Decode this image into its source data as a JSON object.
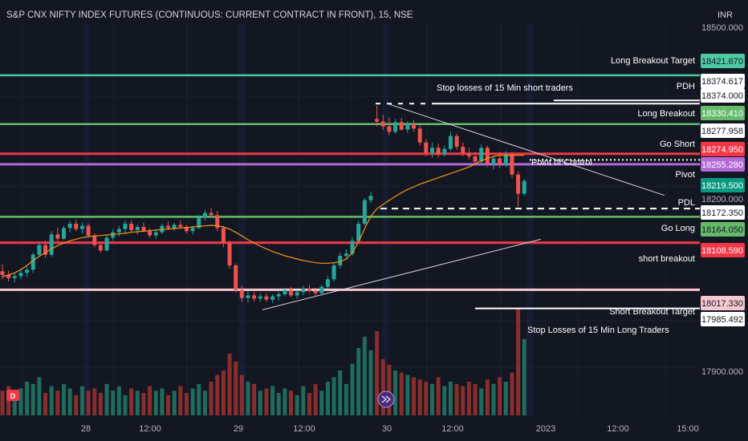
{
  "header": {
    "title": "S&P CNX NIFTY INDEX FUTURES (CONTINUOUS: CURRENT CONTRACT IN FRONT), 15, NSE",
    "currency": "INR"
  },
  "colors": {
    "background": "#131722",
    "up": "#26a69a",
    "down": "#ef5350",
    "vol_up": "#1f6b5e",
    "vol_down": "#8a2d2d",
    "vwap": "#f7931a",
    "teal_line": "#4ec9a4",
    "green_line": "#66bb6a",
    "red_line": "#f23645",
    "purple_line": "#b36ad8",
    "pink_line": "#f8c8d0",
    "white": "#ffffff"
  },
  "chart_data": {
    "type": "candlestick",
    "title": "S&P CNX NIFTY INDEX FUTURES (CONTINUOUS: CURRENT CONTRACT IN FRONT), 15, NSE",
    "interval": "15",
    "exchange": "NSE",
    "currency": "INR",
    "ylim": [
      17880,
      18510
    ],
    "y_ticks": [
      "18500.000",
      "18200.000",
      "17900.000"
    ],
    "x_ticks": [
      "28",
      "12:00",
      "29",
      "12:00",
      "30",
      "12:00",
      "2023",
      "12:00",
      "15:00"
    ],
    "grid": true,
    "candles": [
      [
        18055,
        18068,
        18040,
        18048
      ],
      [
        18048,
        18056,
        18036,
        18042
      ],
      [
        18042,
        18052,
        18034,
        18046
      ],
      [
        18046,
        18060,
        18040,
        18052
      ],
      [
        18052,
        18064,
        18044,
        18058
      ],
      [
        18058,
        18090,
        18052,
        18086
      ],
      [
        18086,
        18110,
        18082,
        18104
      ],
      [
        18104,
        18112,
        18080,
        18086
      ],
      [
        18086,
        18130,
        18082,
        18124
      ],
      [
        18124,
        18136,
        18110,
        18116
      ],
      [
        18116,
        18140,
        18114,
        18136
      ],
      [
        18136,
        18150,
        18128,
        18144
      ],
      [
        18144,
        18152,
        18130,
        18134
      ],
      [
        18134,
        18146,
        18126,
        18140
      ],
      [
        18140,
        18144,
        18118,
        18122
      ],
      [
        18122,
        18126,
        18100,
        18104
      ],
      [
        18104,
        18110,
        18090,
        18094
      ],
      [
        18094,
        18122,
        18092,
        18118
      ],
      [
        18118,
        18134,
        18112,
        18128
      ],
      [
        18128,
        18140,
        18120,
        18134
      ],
      [
        18134,
        18150,
        18126,
        18144
      ],
      [
        18144,
        18150,
        18128,
        18132
      ],
      [
        18132,
        18142,
        18124,
        18138
      ],
      [
        18138,
        18146,
        18128,
        18130
      ],
      [
        18130,
        18136,
        18118,
        18122
      ],
      [
        18122,
        18132,
        18116,
        18128
      ],
      [
        18128,
        18144,
        18124,
        18140
      ],
      [
        18140,
        18148,
        18132,
        18136
      ],
      [
        18136,
        18146,
        18130,
        18142
      ],
      [
        18142,
        18150,
        18134,
        18138
      ],
      [
        18138,
        18142,
        18126,
        18130
      ],
      [
        18130,
        18140,
        18124,
        18136
      ],
      [
        18136,
        18160,
        18134,
        18156
      ],
      [
        18156,
        18170,
        18150,
        18164
      ],
      [
        18164,
        18174,
        18156,
        18160
      ],
      [
        18160,
        18168,
        18130,
        18136
      ],
      [
        18136,
        18140,
        18100,
        18108
      ],
      [
        18108,
        18112,
        18060,
        18066
      ],
      [
        18066,
        18070,
        18015,
        18020
      ],
      [
        18020,
        18028,
        17998,
        18005
      ],
      [
        18005,
        18018,
        17996,
        18010
      ],
      [
        18010,
        18016,
        17998,
        18004
      ],
      [
        18004,
        18014,
        17998,
        18008
      ],
      [
        18008,
        18014,
        17998,
        18002
      ],
      [
        18002,
        18012,
        17996,
        18008
      ],
      [
        18008,
        18016,
        18000,
        18012
      ],
      [
        18012,
        18024,
        18008,
        18020
      ],
      [
        18020,
        18026,
        18006,
        18010
      ],
      [
        18010,
        18020,
        18004,
        18016
      ],
      [
        18016,
        18028,
        18010,
        18022
      ],
      [
        18022,
        18030,
        18014,
        18018
      ],
      [
        18018,
        18024,
        18008,
        18014
      ],
      [
        18014,
        18030,
        18010,
        18026
      ],
      [
        18026,
        18046,
        18022,
        18040
      ],
      [
        18040,
        18072,
        18036,
        18066
      ],
      [
        18066,
        18090,
        18060,
        18084
      ],
      [
        18084,
        18096,
        18076,
        18088
      ],
      [
        18088,
        18118,
        18084,
        18112
      ],
      [
        18112,
        18150,
        18108,
        18144
      ],
      [
        18144,
        18192,
        18140,
        18188
      ],
      [
        18188,
        18204,
        18182,
        18196
      ],
      [
        18340,
        18365,
        18326,
        18335
      ],
      [
        18335,
        18348,
        18320,
        18326
      ],
      [
        18326,
        18344,
        18310,
        18316
      ],
      [
        18316,
        18340,
        18312,
        18334
      ],
      [
        18334,
        18342,
        18318,
        18320
      ],
      [
        18320,
        18336,
        18314,
        18330
      ],
      [
        18330,
        18338,
        18316,
        18322
      ],
      [
        18322,
        18328,
        18290,
        18296
      ],
      [
        18296,
        18302,
        18270,
        18276
      ],
      [
        18276,
        18296,
        18268,
        18286
      ],
      [
        18286,
        18294,
        18268,
        18274
      ],
      [
        18274,
        18290,
        18270,
        18284
      ],
      [
        18284,
        18316,
        18280,
        18308
      ],
      [
        18308,
        18312,
        18282,
        18288
      ],
      [
        18288,
        18296,
        18270,
        18276
      ],
      [
        18276,
        18286,
        18264,
        18270
      ],
      [
        18270,
        18278,
        18254,
        18260
      ],
      [
        18260,
        18292,
        18256,
        18286
      ],
      [
        18286,
        18290,
        18250,
        18256
      ],
      [
        18256,
        18270,
        18246,
        18266
      ],
      [
        18266,
        18278,
        18248,
        18254
      ],
      [
        18254,
        18280,
        18250,
        18274
      ],
      [
        18274,
        18278,
        18230,
        18236
      ],
      [
        18236,
        18242,
        18176,
        18200
      ],
      [
        18200,
        18228,
        18196,
        18224
      ]
    ],
    "vwap": [
      18045,
      18048,
      18052,
      18058,
      18066,
      18075,
      18083,
      18090,
      18097,
      18103,
      18108,
      18112,
      18115,
      18118,
      18120,
      18121,
      18122,
      18123,
      18124,
      18125,
      18126,
      18128,
      18129,
      18130,
      18131,
      18132,
      18133,
      18134,
      18135,
      18136,
      18137,
      18138,
      18139,
      18140,
      18141,
      18140,
      18138,
      18134,
      18128,
      18121,
      18114,
      18108,
      18102,
      18097,
      18092,
      18088,
      18084,
      18081,
      18078,
      18075,
      18073,
      18071,
      18070,
      18070,
      18071,
      18073,
      18078,
      18090,
      18110,
      18135,
      18158,
      18172,
      18180,
      18188,
      18195,
      18202,
      18208,
      18213,
      18218,
      18222,
      18226,
      18230,
      18234,
      18238,
      18242,
      18246,
      18250,
      18256,
      18262,
      18266,
      18270,
      18272,
      18272,
      18272,
      18272,
      18272
    ],
    "volume": [
      22,
      26,
      20,
      24,
      30,
      28,
      34,
      20,
      26,
      22,
      28,
      24,
      18,
      26,
      22,
      24,
      20,
      28,
      22,
      26,
      18,
      24,
      22,
      20,
      26,
      22,
      24,
      18,
      22,
      26,
      20,
      24,
      28,
      22,
      30,
      36,
      40,
      55,
      48,
      36,
      30,
      28,
      22,
      24,
      26,
      20,
      24,
      22,
      18,
      26,
      20,
      28,
      22,
      30,
      34,
      40,
      28,
      46,
      60,
      70,
      58,
      75,
      50,
      45,
      40,
      38,
      36,
      34,
      32,
      30,
      28,
      34,
      26,
      30,
      28,
      26,
      30,
      28,
      24,
      32,
      28,
      34,
      30,
      38,
      95,
      68
    ],
    "levels": [
      {
        "label": "Long Breakout Target",
        "price": "18421.670",
        "value": 18421.67,
        "color": "#4ec9a4",
        "text_color": "#131722"
      },
      {
        "label": "PDH",
        "price": "18374.617",
        "value": 18374.617,
        "color": "#ffffff",
        "text_color": "#131722"
      },
      {
        "label": "",
        "price": "18374.000",
        "value": 18368.6,
        "color": "#ffffff",
        "text_color": "#131722"
      },
      {
        "label": "Long Breakout",
        "price": "18330.410",
        "value": 18330.41,
        "color": "#66bb6a",
        "text_color": "#ffffff"
      },
      {
        "label": "",
        "price": "18277.958",
        "value": 18292.5,
        "color": "#ffffff",
        "text_color": "#131722"
      },
      {
        "label": "Go Short",
        "price": "18274.950",
        "value": 18274.95,
        "color": "#f23645",
        "text_color": "#ffffff"
      },
      {
        "label": "Pivot",
        "price": "18255.280",
        "value": 18255.28,
        "color": "#b36ad8",
        "text_color": "#ffffff"
      },
      {
        "label": "",
        "price": "18219.500",
        "value": 18219.5,
        "color": "#089981",
        "text_color": "#ffffff"
      },
      {
        "label": "PDL",
        "price": "18172.350",
        "value": 18172.35,
        "color": "#ffffff",
        "text_color": "#131722"
      },
      {
        "label": "Go Long",
        "price": "18164.050",
        "value": 18164.05,
        "color": "#66bb6a",
        "text_color": "#131722"
      },
      {
        "label": "short breakout",
        "price": "18108.590",
        "value": 18108.59,
        "color": "#f23645",
        "text_color": "#ffffff"
      },
      {
        "label": "Short  Breakout Target",
        "price": "18017.330",
        "value": 18017.33,
        "color": "#f8c8d0",
        "text_color": "#131722"
      },
      {
        "label": "",
        "price": "17985.492",
        "value": 17985.492,
        "color": "#ffffff",
        "text_color": "#131722"
      }
    ],
    "annotations": [
      "Stop losses of 15 Min short traders",
      "Point of Control",
      "Stop Losses of 15 Min Long Traders"
    ]
  }
}
